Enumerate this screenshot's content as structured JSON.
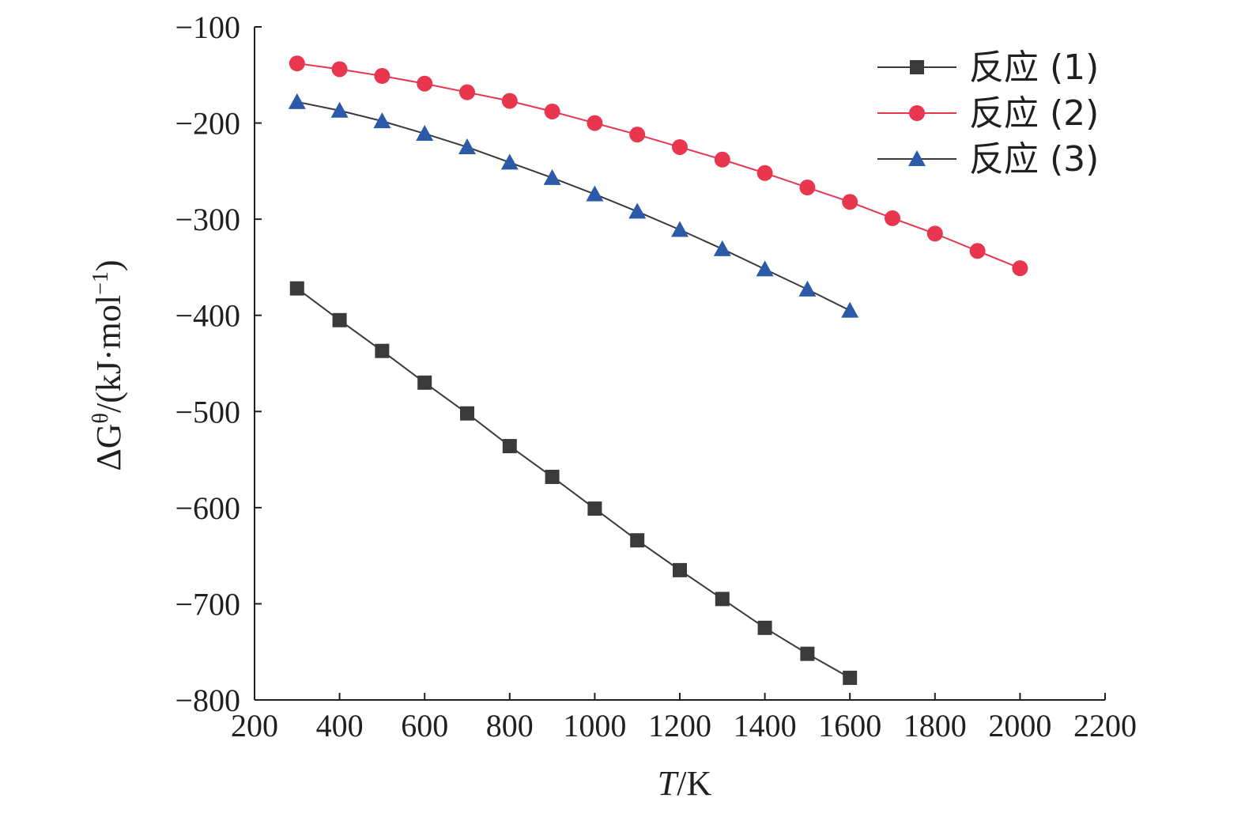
{
  "chart_data": {
    "type": "line",
    "xlabel_italic": "T",
    "xlabel_rest": "/K",
    "ylabel_main": "ΔG",
    "ylabel_sup": "θ",
    "ylabel_mid": "/(kJ·mol",
    "ylabel_sup2": "−1",
    "ylabel_end": ")",
    "xlim": [
      200,
      2200
    ],
    "ylim": [
      -800,
      -100
    ],
    "xticks": [
      200,
      400,
      600,
      800,
      1000,
      1200,
      1400,
      1600,
      1800,
      2000,
      2200
    ],
    "yticks": [
      -100,
      -200,
      -300,
      -400,
      -500,
      -600,
      -700,
      -800
    ],
    "xtick_labels": [
      "200",
      "400",
      "600",
      "800",
      "1000",
      "1200",
      "1400",
      "1600",
      "1800",
      "2000",
      "2200"
    ],
    "ytick_labels": [
      "−100",
      "−200",
      "−300",
      "−400",
      "−500",
      "−600",
      "−700",
      "−800"
    ],
    "grid": false,
    "legend_position": "top-right",
    "series": [
      {
        "name": "反应 (1)",
        "marker": "square",
        "color": "#3a3a3a",
        "line_color": "#3a3a3a",
        "x": [
          300,
          400,
          500,
          600,
          700,
          800,
          900,
          1000,
          1100,
          1200,
          1300,
          1400,
          1500,
          1600
        ],
        "y": [
          -372,
          -405,
          -437,
          -470,
          -502,
          -536,
          -568,
          -601,
          -634,
          -665,
          -695,
          -725,
          -752,
          -777
        ]
      },
      {
        "name": "反应 (2)",
        "marker": "circle",
        "color": "#e8364f",
        "line_color": "#e8364f",
        "x": [
          300,
          400,
          500,
          600,
          700,
          800,
          900,
          1000,
          1100,
          1200,
          1300,
          1400,
          1500,
          1600,
          1700,
          1800,
          1900,
          2000
        ],
        "y": [
          -138,
          -144,
          -151,
          -159,
          -168,
          -177,
          -188,
          -200,
          -212,
          -225,
          -238,
          -252,
          -267,
          -282,
          -299,
          -315,
          -333,
          -351
        ]
      },
      {
        "name": "反应 (3)",
        "marker": "triangle",
        "color": "#2d5aa8",
        "line_color": "#3a3a3a",
        "x": [
          300,
          400,
          500,
          600,
          700,
          800,
          900,
          1000,
          1100,
          1200,
          1300,
          1400,
          1500,
          1600
        ],
        "y": [
          -178,
          -187,
          -198,
          -211,
          -225,
          -241,
          -257,
          -274,
          -292,
          -311,
          -331,
          -352,
          -373,
          -395
        ]
      }
    ]
  }
}
